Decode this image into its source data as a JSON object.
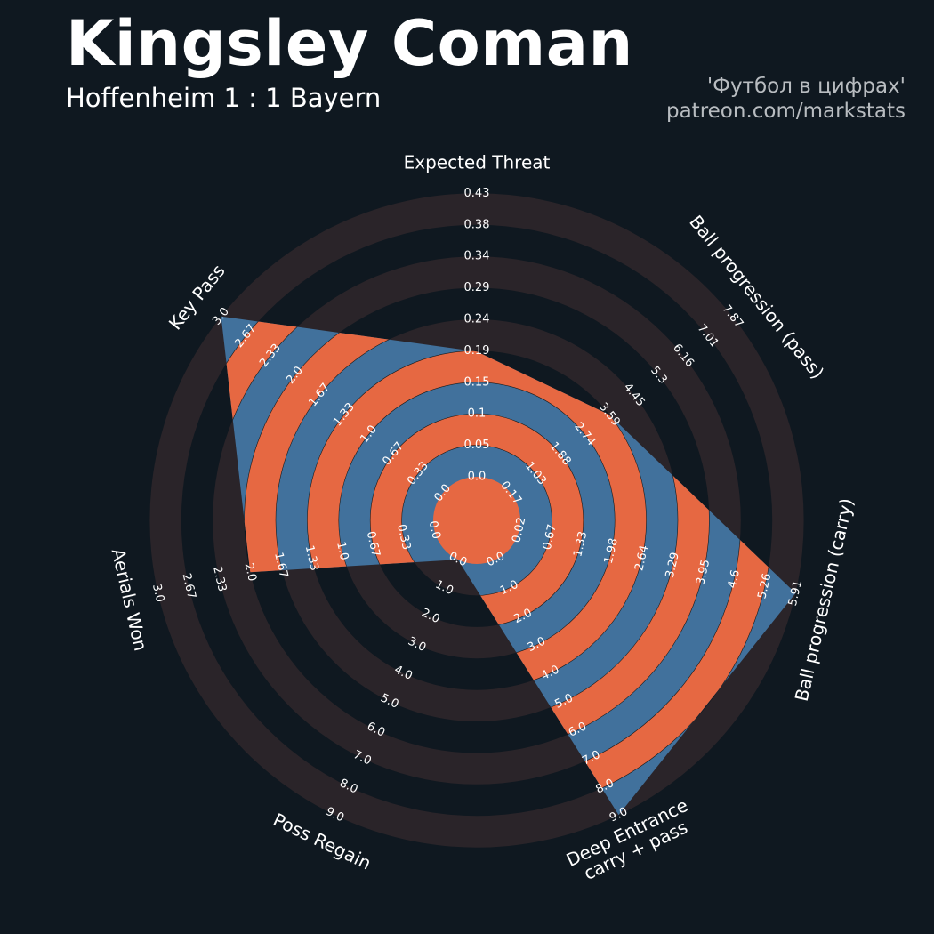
{
  "header": {
    "title": "Kingsley Coman",
    "subtitle": "Hoffenheim 1 : 1 Bayern",
    "credit_line1": "'Футбол в цифрах'",
    "credit_line2": "patreon.com/markstats"
  },
  "colors": {
    "background": "#0f1820",
    "ring_dark": "#2a2429",
    "polygon_blue": "#41719c",
    "polygon_orange": "#e66842",
    "text": "#ffffff",
    "credit": "#b8bcc0"
  },
  "chart_data": {
    "type": "radar",
    "title": "Kingsley Coman",
    "subtitle": "Hoffenheim 1 : 1 Bayern",
    "axes": [
      {
        "label": "Expected Threat",
        "ticks": [
          "0.0",
          "0.05",
          "0.1",
          "0.15",
          "0.19",
          "0.24",
          "0.29",
          "0.34",
          "0.38",
          "0.43"
        ],
        "value": 0.19,
        "min": 0.0,
        "max": 0.43
      },
      {
        "label": "Ball progression (pass)",
        "ticks": [
          "0.17",
          "1.03",
          "1.88",
          "2.74",
          "3.59",
          "4.45",
          "5.3",
          "6.16",
          "7.01",
          "7.87"
        ],
        "value": 3.59,
        "min": 0.17,
        "max": 7.87
      },
      {
        "label": "Ball progression (carry)",
        "ticks": [
          "0.02",
          "0.67",
          "1.33",
          "1.98",
          "2.64",
          "3.29",
          "3.95",
          "4.6",
          "5.26",
          "5.91"
        ],
        "value": 5.91,
        "min": 0.02,
        "max": 5.91
      },
      {
        "label": "Deep Entrance\ncarry + pass",
        "ticks": [
          "0.0",
          "1.0",
          "2.0",
          "3.0",
          "4.0",
          "5.0",
          "6.0",
          "7.0",
          "8.0",
          "9.0"
        ],
        "value": 9.0,
        "min": 0.0,
        "max": 9.0
      },
      {
        "label": "Poss Regain",
        "ticks": [
          "0.0",
          "1.0",
          "2.0",
          "3.0",
          "4.0",
          "5.0",
          "6.0",
          "7.0",
          "8.0",
          "9.0"
        ],
        "value": 0.0,
        "min": 0.0,
        "max": 9.0
      },
      {
        "label": "Aerials Won",
        "ticks": [
          "0.0",
          "0.33",
          "0.67",
          "1.0",
          "1.33",
          "1.67",
          "2.0",
          "2.33",
          "2.67",
          "3.0"
        ],
        "value": 2.0,
        "min": 0.0,
        "max": 3.0
      },
      {
        "label": "Key Pass",
        "ticks": [
          "0.0",
          "0.33",
          "0.67",
          "1.0",
          "1.33",
          "1.67",
          "2.0",
          "2.33",
          "2.67",
          "3.0"
        ],
        "value": 3.0,
        "min": 0.0,
        "max": 3.0
      }
    ]
  }
}
